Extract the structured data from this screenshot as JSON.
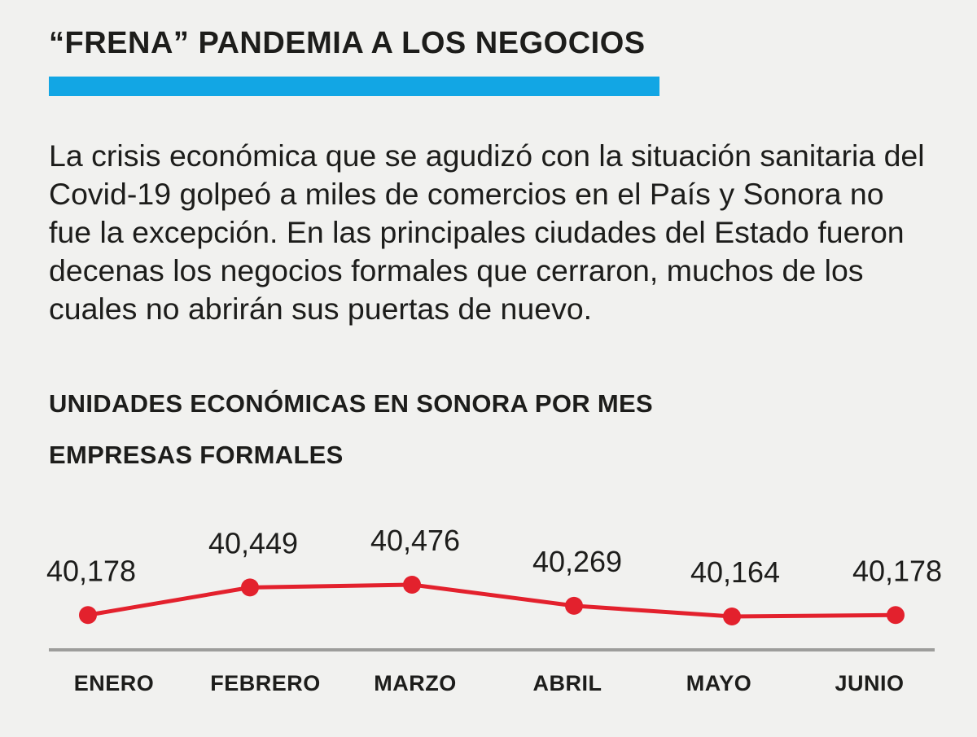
{
  "header": {
    "title": "“FRENA” PANDEMIA A LOS NEGOCIOS",
    "accent_color": "#12a6e4"
  },
  "intro": {
    "text": "La crisis económica que se agudizó con la situación sanitaria del Covid-19 golpeó a miles de comercios en el País y Sonora no fue la excepción. En las principales ciudades del Estado fueron decenas los negocios formales que cerraron, muchos de los cuales no abrirán sus puertas de nuevo."
  },
  "chart_heading": {
    "line1": "UNIDADES ECONÓMICAS EN SONORA POR MES",
    "line2": "EMPRESAS FORMALES"
  },
  "chart_data": {
    "type": "line",
    "categories": [
      "ENERO",
      "FEBRERO",
      "MARZO",
      "ABRIL",
      "MAYO",
      "JUNIO"
    ],
    "values": [
      40178,
      40449,
      40476,
      40269,
      40164,
      40178
    ],
    "value_labels": [
      "40,178",
      "40,449",
      "40,476",
      "40,269",
      "40,164",
      "40,178"
    ],
    "line_color": "#e3212d",
    "axis_color": "#9d9d9b",
    "grid": false
  }
}
